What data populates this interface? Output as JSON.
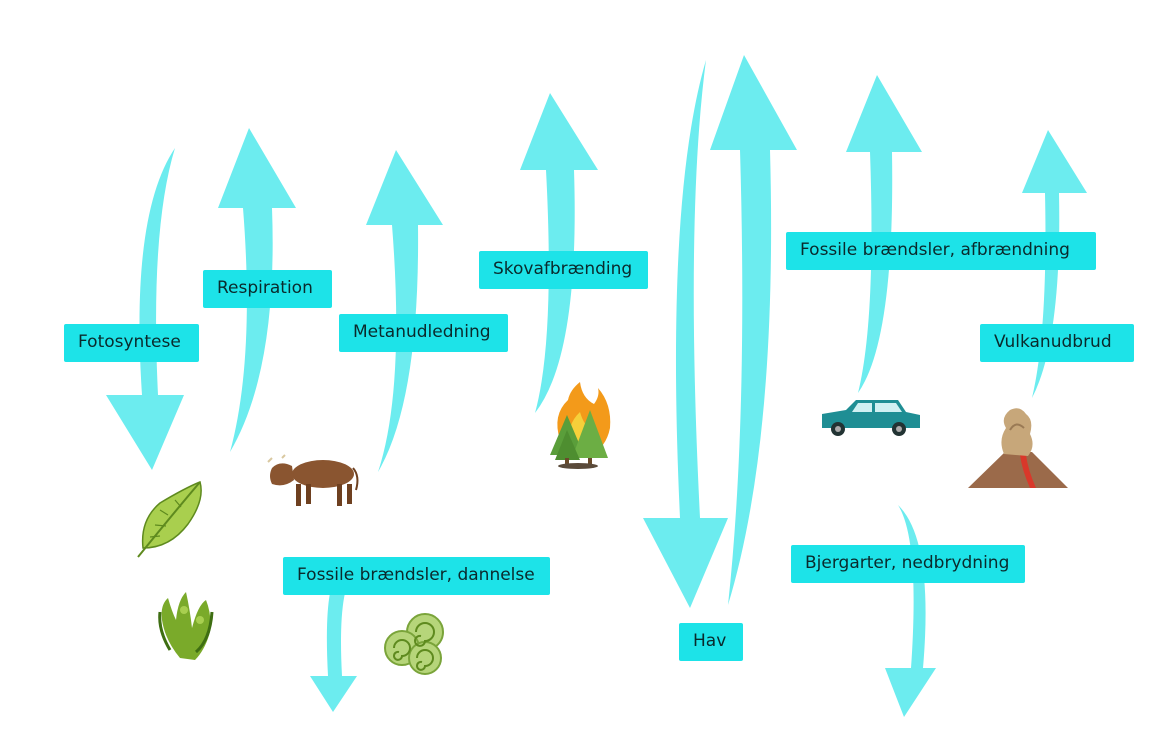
{
  "colors": {
    "arrow": "#6cecef",
    "label_bg": "#1de3e8",
    "label_text": "#0a2a2c",
    "background": "#ffffff"
  },
  "labels": {
    "fotosyntese": "Fotosyntese",
    "respiration": "Respiration",
    "metanudledning": "Metanudledning",
    "skovafbraending": "Skovafbrænding",
    "fossile_afbraendning": "Fossile brændsler, afbrændning",
    "vulkanudbrud": "Vulkanudbrud",
    "fossile_dannelse": "Fossile brændsler, dannelse",
    "hav": "Hav",
    "bjergarter": "Bjergarter, nedbrydning"
  },
  "icons": [
    "leaf-icon",
    "seaweed-icon",
    "cow-icon",
    "fossil-fern-icon",
    "forest-fire-icon",
    "car-icon",
    "volcano-icon"
  ]
}
